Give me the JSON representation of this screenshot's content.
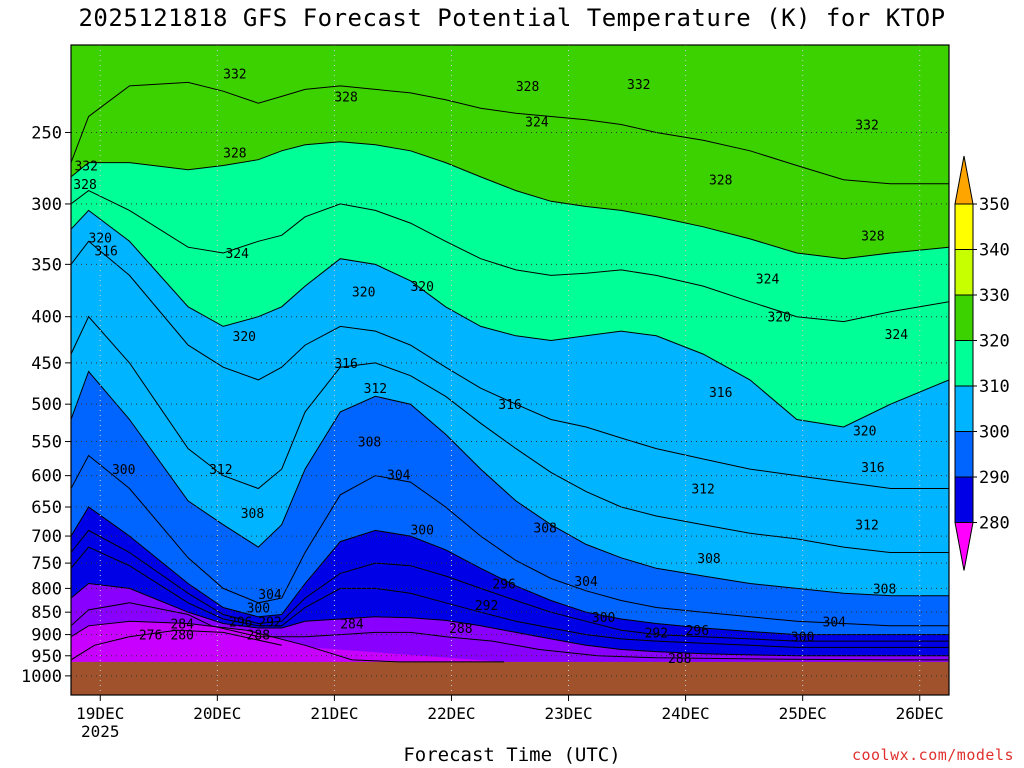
{
  "chart_data": {
    "type": "contour",
    "title": "2025121818 GFS Forecast Potential Temperature (K) for KTOP",
    "xlabel": "Forecast Time (UTC)",
    "ylabel": "",
    "credit": "coolwx.com/models",
    "y_axis": {
      "scale": "log-pressure",
      "range": [
        1050,
        200
      ],
      "ticks": [
        "250",
        "300",
        "350",
        "400",
        "450",
        "500",
        "550",
        "600",
        "650",
        "700",
        "750",
        "800",
        "850",
        "900",
        "950",
        "1000"
      ],
      "tick_values": [
        250,
        300,
        350,
        400,
        450,
        500,
        550,
        600,
        650,
        700,
        750,
        800,
        850,
        900,
        950,
        1000
      ]
    },
    "x_axis": {
      "range_days": [
        0,
        7.5
      ],
      "ticks": [
        {
          "day": 0.25,
          "label": "19DEC",
          "sublabel": "2025"
        },
        {
          "day": 1.25,
          "label": "20DEC"
        },
        {
          "day": 2.25,
          "label": "21DEC"
        },
        {
          "day": 3.25,
          "label": "22DEC"
        },
        {
          "day": 4.25,
          "label": "23DEC"
        },
        {
          "day": 5.25,
          "label": "24DEC"
        },
        {
          "day": 6.25,
          "label": "25DEC"
        },
        {
          "day": 7.25,
          "label": "26DEC"
        }
      ]
    },
    "surface_pressure_hpa": 965,
    "surface_color": "#a0522d",
    "colorbar": {
      "levels": [
        "280",
        "290",
        "300",
        "310",
        "320",
        "330",
        "340",
        "350"
      ],
      "level_values": [
        280,
        290,
        300,
        310,
        320,
        330,
        340,
        350
      ],
      "colors": [
        "#ff00ff",
        "#c800ff",
        "#8a00ff",
        "#0000e6",
        "#0064ff",
        "#00b4ff",
        "#00ff96",
        "#3cd200",
        "#c8ff00",
        "#ffff00",
        "#ffa500"
      ]
    },
    "contour_interval_K": 4,
    "contour_lines": [
      {
        "value": 276,
        "x": [
          0,
          0.2,
          0.5,
          0.9,
          1.3,
          1.8
        ],
        "p": [
          960,
          925,
          905,
          890,
          895,
          925
        ]
      },
      {
        "value": 280,
        "x": [
          0,
          0.15,
          0.5,
          1.0,
          1.5,
          2.0,
          2.4,
          2.8,
          3.2,
          3.7
        ],
        "p": [
          905,
          880,
          870,
          875,
          890,
          925,
          960,
          965,
          965,
          965
        ]
      },
      {
        "value": 284,
        "x": [
          0,
          0.15,
          0.5,
          1.0,
          1.2,
          1.6,
          2.0,
          2.3,
          2.6,
          2.9,
          3.2,
          3.6,
          4.0,
          4.5,
          5.0,
          6.0,
          7.0,
          7.5
        ],
        "p": [
          880,
          845,
          830,
          855,
          880,
          905,
          905,
          900,
          895,
          895,
          905,
          915,
          935,
          950,
          955,
          958,
          960,
          960
        ]
      },
      {
        "value": 288,
        "x": [
          0,
          0.15,
          0.5,
          1.0,
          1.3,
          1.6,
          1.8,
          2.0,
          2.3,
          2.6,
          2.9,
          3.2,
          3.5,
          3.8,
          4.1,
          4.4,
          4.7,
          5.0,
          5.4,
          5.8,
          6.2,
          6.6,
          7.0,
          7.5
        ],
        "p": [
          820,
          790,
          800,
          850,
          875,
          885,
          885,
          870,
          865,
          860,
          862,
          868,
          880,
          895,
          910,
          925,
          935,
          940,
          945,
          948,
          950,
          950,
          950,
          950
        ]
      },
      {
        "value": 292,
        "x": [
          0,
          0.15,
          0.5,
          1.0,
          1.3,
          1.6,
          1.8,
          2.0,
          2.3,
          2.6,
          2.9,
          3.2,
          3.5,
          3.8,
          4.1,
          4.4,
          4.7,
          5.0,
          5.4,
          5.8,
          6.2,
          6.6,
          7.0,
          7.5
        ],
        "p": [
          760,
          720,
          755,
          830,
          865,
          880,
          880,
          840,
          800,
          800,
          810,
          830,
          850,
          870,
          885,
          900,
          910,
          915,
          920,
          925,
          930,
          930,
          930,
          930
        ]
      },
      {
        "value": 296,
        "x": [
          0,
          0.15,
          0.5,
          1.0,
          1.3,
          1.6,
          1.8,
          2.0,
          2.3,
          2.6,
          2.9,
          3.2,
          3.5,
          3.8,
          4.1,
          4.4,
          4.7,
          5.0,
          5.4,
          5.8,
          6.2,
          6.6,
          7.0,
          7.5
        ],
        "p": [
          730,
          690,
          730,
          810,
          855,
          875,
          870,
          820,
          770,
          750,
          755,
          775,
          800,
          825,
          850,
          870,
          890,
          900,
          905,
          910,
          915,
          915,
          915,
          915
        ]
      },
      {
        "value": 300,
        "x": [
          0,
          0.15,
          0.5,
          1.0,
          1.3,
          1.6,
          1.8,
          2.0,
          2.3,
          2.6,
          2.9,
          3.2,
          3.5,
          3.8,
          4.1,
          4.4,
          4.7,
          5.0,
          5.4,
          5.8,
          6.2,
          6.6,
          7.0,
          7.5
        ],
        "p": [
          700,
          650,
          700,
          790,
          840,
          860,
          855,
          790,
          710,
          690,
          700,
          725,
          760,
          795,
          825,
          850,
          865,
          875,
          885,
          893,
          900,
          900,
          900,
          900
        ]
      },
      {
        "value": 304,
        "x": [
          0,
          0.15,
          0.5,
          1.0,
          1.3,
          1.6,
          1.8,
          2.0,
          2.3,
          2.6,
          2.9,
          3.2,
          3.5,
          3.8,
          4.1,
          4.4,
          4.7,
          5.0,
          5.4,
          5.8,
          6.2,
          6.6,
          7.0,
          7.5
        ],
        "p": [
          620,
          570,
          620,
          740,
          800,
          830,
          820,
          730,
          630,
          600,
          610,
          650,
          700,
          745,
          780,
          805,
          825,
          840,
          850,
          860,
          870,
          875,
          880,
          880
        ]
      },
      {
        "value": 308,
        "x": [
          0,
          0.15,
          0.5,
          1.0,
          1.3,
          1.6,
          1.8,
          2.0,
          2.3,
          2.6,
          2.9,
          3.2,
          3.5,
          3.8,
          4.1,
          4.4,
          4.7,
          5.0,
          5.4,
          5.8,
          6.2,
          6.6,
          7.0,
          7.5
        ],
        "p": [
          520,
          460,
          520,
          640,
          680,
          720,
          680,
          590,
          510,
          490,
          500,
          540,
          590,
          640,
          680,
          715,
          740,
          760,
          775,
          790,
          800,
          810,
          815,
          815
        ]
      },
      {
        "value": 312,
        "x": [
          0,
          0.15,
          0.5,
          1.0,
          1.3,
          1.6,
          1.8,
          2.0,
          2.3,
          2.6,
          2.9,
          3.2,
          3.5,
          3.8,
          4.1,
          4.4,
          4.7,
          5.0,
          5.4,
          5.8,
          6.2,
          6.6,
          7.0,
          7.5
        ],
        "p": [
          440,
          400,
          450,
          560,
          600,
          620,
          590,
          510,
          455,
          450,
          465,
          490,
          525,
          560,
          595,
          625,
          650,
          665,
          680,
          695,
          705,
          720,
          730,
          730
        ]
      },
      {
        "value": 316,
        "x": [
          0,
          0.15,
          0.5,
          1.0,
          1.3,
          1.6,
          1.8,
          2.0,
          2.3,
          2.6,
          2.9,
          3.2,
          3.5,
          3.8,
          4.1,
          4.4,
          4.7,
          5.0,
          5.4,
          5.8,
          6.2,
          6.6,
          7.0,
          7.5
        ],
        "p": [
          350,
          330,
          360,
          430,
          455,
          470,
          455,
          430,
          410,
          415,
          430,
          455,
          480,
          500,
          520,
          530,
          545,
          560,
          575,
          590,
          600,
          610,
          620,
          620
        ]
      },
      {
        "value": 320,
        "x": [
          0,
          0.15,
          0.5,
          1.0,
          1.3,
          1.6,
          1.8,
          2.0,
          2.3,
          2.6,
          2.9,
          3.2,
          3.5,
          3.8,
          4.1,
          4.4,
          4.7,
          5.0,
          5.4,
          5.8,
          6.2,
          6.6,
          7.0,
          7.5
        ],
        "p": [
          320,
          305,
          330,
          390,
          410,
          400,
          390,
          370,
          345,
          350,
          365,
          390,
          410,
          420,
          425,
          420,
          415,
          420,
          440,
          470,
          520,
          530,
          500,
          470
        ]
      },
      {
        "value": 324,
        "x": [
          0,
          0.15,
          0.5,
          1.0,
          1.3,
          1.6,
          1.8,
          2.0,
          2.3,
          2.6,
          2.9,
          3.2,
          3.5,
          3.8,
          4.1,
          4.4,
          4.7,
          5.0,
          5.4,
          5.8,
          6.2,
          6.6,
          7.0,
          7.5
        ],
        "p": [
          300,
          290,
          305,
          335,
          340,
          330,
          325,
          310,
          300,
          305,
          315,
          330,
          345,
          355,
          360,
          358,
          355,
          360,
          370,
          385,
          400,
          405,
          395,
          385
        ]
      },
      {
        "value": 328,
        "x": [
          0,
          0.15,
          0.5,
          1.0,
          1.3,
          1.6,
          1.8,
          2.0,
          2.3,
          2.6,
          2.9,
          3.2,
          3.5,
          3.8,
          4.1,
          4.4,
          4.7,
          5.0,
          5.4,
          5.8,
          6.2,
          6.6,
          7.0,
          7.5
        ],
        "p": [
          280,
          270,
          270,
          275,
          272,
          268,
          262,
          258,
          256,
          258,
          262,
          270,
          280,
          290,
          298,
          302,
          305,
          310,
          318,
          328,
          340,
          345,
          340,
          335
        ]
      },
      {
        "value": 332,
        "x": [
          0,
          0.15,
          0.5,
          1.0,
          1.3,
          1.6,
          1.8,
          2.0,
          2.3,
          2.6,
          2.9,
          3.2,
          3.5,
          3.8,
          4.1,
          4.4,
          4.7,
          5.0,
          5.4,
          5.8,
          6.2,
          6.6,
          7.0,
          7.5
        ],
        "p": [
          270,
          240,
          222,
          220,
          225,
          232,
          228,
          224,
          222,
          224,
          226,
          230,
          235,
          238,
          240,
          242,
          245,
          250,
          255,
          262,
          272,
          282,
          285,
          285
        ]
      }
    ],
    "contour_labels": [
      {
        "text": "332",
        "x": 0.13,
        "p": 272
      },
      {
        "text": "328",
        "x": 0.12,
        "p": 285
      },
      {
        "text": "320",
        "x": 0.25,
        "p": 327
      },
      {
        "text": "316",
        "x": 0.3,
        "p": 338
      },
      {
        "text": "300",
        "x": 0.45,
        "p": 590
      },
      {
        "text": "276",
        "x": 0.68,
        "p": 900
      },
      {
        "text": "280",
        "x": 0.95,
        "p": 900
      },
      {
        "text": "284",
        "x": 0.95,
        "p": 875
      },
      {
        "text": "332",
        "x": 1.4,
        "p": 215
      },
      {
        "text": "328",
        "x": 1.4,
        "p": 263
      },
      {
        "text": "324",
        "x": 1.42,
        "p": 340
      },
      {
        "text": "320",
        "x": 1.48,
        "p": 420
      },
      {
        "text": "312",
        "x": 1.28,
        "p": 590
      },
      {
        "text": "308",
        "x": 1.55,
        "p": 660
      },
      {
        "text": "304",
        "x": 1.7,
        "p": 812
      },
      {
        "text": "300",
        "x": 1.6,
        "p": 840
      },
      {
        "text": "296",
        "x": 1.45,
        "p": 870
      },
      {
        "text": "292",
        "x": 1.7,
        "p": 870
      },
      {
        "text": "288",
        "x": 1.6,
        "p": 900
      },
      {
        "text": "328",
        "x": 2.35,
        "p": 228
      },
      {
        "text": "316",
        "x": 2.35,
        "p": 450
      },
      {
        "text": "284",
        "x": 2.4,
        "p": 875
      },
      {
        "text": "320",
        "x": 2.5,
        "p": 375
      },
      {
        "text": "312",
        "x": 2.6,
        "p": 480
      },
      {
        "text": "308",
        "x": 2.55,
        "p": 550
      },
      {
        "text": "304",
        "x": 2.8,
        "p": 598
      },
      {
        "text": "300",
        "x": 3.0,
        "p": 688
      },
      {
        "text": "320",
        "x": 3.0,
        "p": 370
      },
      {
        "text": "296",
        "x": 3.7,
        "p": 790
      },
      {
        "text": "292",
        "x": 3.55,
        "p": 835
      },
      {
        "text": "288",
        "x": 3.33,
        "p": 885
      },
      {
        "text": "316",
        "x": 3.75,
        "p": 500
      },
      {
        "text": "308",
        "x": 4.05,
        "p": 685
      },
      {
        "text": "328",
        "x": 3.9,
        "p": 222
      },
      {
        "text": "324",
        "x": 3.98,
        "p": 243
      },
      {
        "text": "332",
        "x": 4.85,
        "p": 221
      },
      {
        "text": "304",
        "x": 4.4,
        "p": 785
      },
      {
        "text": "300",
        "x": 4.55,
        "p": 860
      },
      {
        "text": "288",
        "x": 5.2,
        "p": 955
      },
      {
        "text": "292",
        "x": 5.0,
        "p": 895
      },
      {
        "text": "296",
        "x": 5.35,
        "p": 890
      },
      {
        "text": "312",
        "x": 5.4,
        "p": 620
      },
      {
        "text": "316",
        "x": 5.55,
        "p": 485
      },
      {
        "text": "308",
        "x": 5.45,
        "p": 740
      },
      {
        "text": "328",
        "x": 5.55,
        "p": 282
      },
      {
        "text": "324",
        "x": 5.95,
        "p": 363
      },
      {
        "text": "320",
        "x": 6.05,
        "p": 400
      },
      {
        "text": "304",
        "x": 6.52,
        "p": 870
      },
      {
        "text": "300",
        "x": 6.25,
        "p": 905
      },
      {
        "text": "308",
        "x": 6.95,
        "p": 800
      },
      {
        "text": "312",
        "x": 6.8,
        "p": 680
      },
      {
        "text": "316",
        "x": 6.85,
        "p": 587
      },
      {
        "text": "320",
        "x": 6.78,
        "p": 535
      },
      {
        "text": "324",
        "x": 7.05,
        "p": 418
      },
      {
        "text": "328",
        "x": 6.85,
        "p": 325
      },
      {
        "text": "332",
        "x": 6.8,
        "p": 245
      }
    ]
  }
}
